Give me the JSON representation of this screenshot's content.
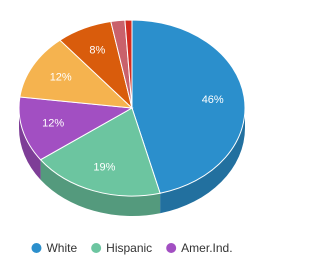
{
  "chart_data": {
    "type": "pie",
    "categories": [
      "White",
      "Hispanic",
      "Amer.Ind.",
      null,
      null,
      null,
      null
    ],
    "values": [
      46,
      19,
      12,
      12,
      8,
      2,
      1
    ],
    "value_labels": [
      "46%",
      "19%",
      "12%",
      "12%",
      "8%",
      null,
      null
    ],
    "colors": [
      "#2b8fcc",
      "#6cc5a0",
      "#a24fc2",
      "#f5b34f",
      "#d95c0c",
      "#c9616b",
      "#d32c1f"
    ],
    "legend": "bottom"
  }
}
